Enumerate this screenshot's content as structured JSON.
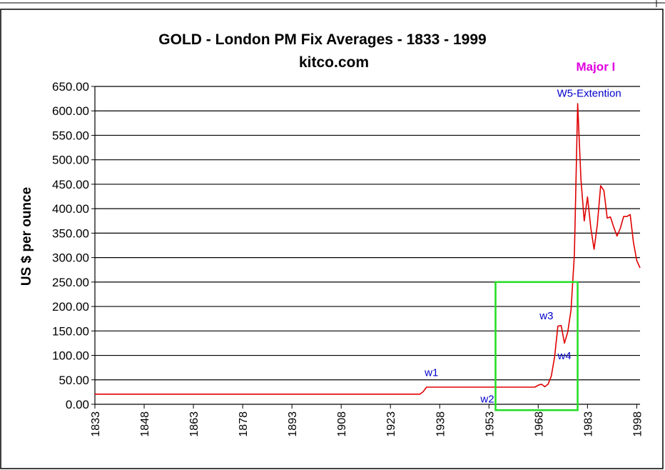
{
  "chart_data": {
    "type": "line",
    "title": "GOLD  -  London PM Fix Averages  -   1833 - 1999",
    "subtitle": "kitco.com",
    "xlabel": "",
    "ylabel": "US $ per ounce",
    "xlim": [
      1833,
      1999
    ],
    "ylim": [
      0,
      650
    ],
    "grid": true,
    "y_ticks": [
      "0.00",
      "50.00",
      "100.00",
      "150.00",
      "200.00",
      "250.00",
      "300.00",
      "350.00",
      "400.00",
      "450.00",
      "500.00",
      "550.00",
      "600.00",
      "650.00"
    ],
    "y_tick_values": [
      0,
      50,
      100,
      150,
      200,
      250,
      300,
      350,
      400,
      450,
      500,
      550,
      600,
      650
    ],
    "x_ticks": [
      "1833",
      "1848",
      "1863",
      "1878",
      "1893",
      "1908",
      "1923",
      "1938",
      "1953",
      "1968",
      "1983",
      "1998"
    ],
    "x_tick_values": [
      1833,
      1848,
      1863,
      1878,
      1893,
      1908,
      1923,
      1938,
      1953,
      1968,
      1983,
      1998
    ],
    "series": [
      {
        "name": "Gold London PM Fix average",
        "color": "#e00000",
        "x": [
          1833,
          1900,
          1932,
          1933,
          1934,
          1935,
          1940,
          1945,
          1950,
          1951,
          1952,
          1953,
          1960,
          1967,
          1968,
          1969,
          1970,
          1971,
          1972,
          1973,
          1974,
          1975,
          1976,
          1977,
          1978,
          1979,
          1980,
          1981,
          1982,
          1983,
          1984,
          1985,
          1986,
          1987,
          1988,
          1989,
          1990,
          1991,
          1992,
          1993,
          1994,
          1995,
          1996,
          1997,
          1998,
          1999
        ],
        "y": [
          20.67,
          20.67,
          20.67,
          26,
          35,
          35,
          35,
          35,
          35,
          35,
          35,
          35,
          35,
          35,
          39,
          41,
          36,
          41,
          58,
          97,
          160,
          161,
          125,
          148,
          193,
          306,
          615,
          460,
          375,
          424,
          361,
          317,
          368,
          447,
          437,
          381,
          383,
          362,
          344,
          360,
          384,
          384,
          388,
          331,
          294,
          279
        ]
      }
    ],
    "annotations": [
      {
        "text": "Major I",
        "color": "#e000e0"
      },
      {
        "text": "W5-Extention",
        "color": "#0000cc"
      },
      {
        "text": "w1",
        "color": "#0000cc"
      },
      {
        "text": "w2",
        "color": "#0000cc"
      },
      {
        "text": "w3",
        "color": "#0000cc"
      },
      {
        "text": "w4",
        "color": "#0000cc"
      }
    ],
    "highlight_box": {
      "x_range": [
        1955,
        1980
      ],
      "y_range": [
        -12,
        250
      ],
      "color": "#22dd22"
    }
  }
}
